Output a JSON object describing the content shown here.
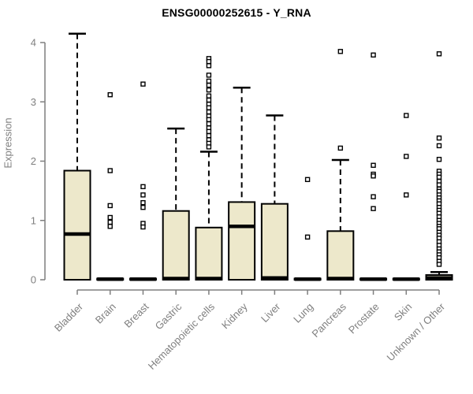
{
  "chart_data": {
    "type": "boxplot",
    "title": "ENSG00000252615 - Y_RNA",
    "ylabel": "Expression",
    "xlabel": "",
    "ylim": [
      0,
      4.2
    ],
    "yticks": [
      0,
      1,
      2,
      3,
      4
    ],
    "grid": false,
    "legend": "none",
    "categories": [
      "Bladder",
      "Brain",
      "Breast",
      "Gastric",
      "Hematopoietic cells",
      "Kidney",
      "Liver",
      "Lung",
      "Pancreas",
      "Prostate",
      "Skin",
      "Unknown / Other"
    ],
    "series": [
      {
        "label": "Bladder",
        "whisker_low": 0,
        "q1": 0,
        "median": 0.77,
        "q3": 1.84,
        "whisker_high": 4.15,
        "outliers": []
      },
      {
        "label": "Brain",
        "whisker_low": 0,
        "q1": 0,
        "median": 0.01,
        "q3": 0.02,
        "whisker_high": 0.02,
        "outliers": [
          3.12,
          1.84,
          1.25,
          1.05,
          0.97,
          0.9
        ]
      },
      {
        "label": "Breast",
        "whisker_low": 0,
        "q1": 0,
        "median": 0.01,
        "q3": 0.02,
        "whisker_high": 0.02,
        "outliers": [
          3.3,
          1.57,
          1.43,
          1.3,
          1.22,
          0.95,
          0.89
        ]
      },
      {
        "label": "Gastric",
        "whisker_low": 0,
        "q1": 0,
        "median": 0.02,
        "q3": 1.16,
        "whisker_high": 2.55,
        "outliers": []
      },
      {
        "label": "Hematopoietic cells",
        "whisker_low": 0,
        "q1": 0,
        "median": 0.02,
        "q3": 0.88,
        "whisker_high": 2.16,
        "outliers": [
          3.73,
          3.68,
          3.61,
          3.45,
          3.35,
          3.28,
          3.2,
          3.1,
          3.03,
          2.96,
          2.9,
          2.83,
          2.76,
          2.7,
          2.63,
          2.56,
          2.5,
          2.43,
          2.36,
          2.3,
          2.24
        ]
      },
      {
        "label": "Kidney",
        "whisker_low": 0,
        "q1": 0,
        "median": 0.9,
        "q3": 1.31,
        "whisker_high": 3.24,
        "outliers": []
      },
      {
        "label": "Liver",
        "whisker_low": 0,
        "q1": 0,
        "median": 0.03,
        "q3": 1.28,
        "whisker_high": 2.77,
        "outliers": []
      },
      {
        "label": "Lung",
        "whisker_low": 0,
        "q1": 0,
        "median": 0.01,
        "q3": 0.02,
        "whisker_high": 0.02,
        "outliers": [
          1.69,
          0.72
        ]
      },
      {
        "label": "Pancreas",
        "whisker_low": 0,
        "q1": 0,
        "median": 0.02,
        "q3": 0.82,
        "whisker_high": 2.02,
        "outliers": [
          3.85,
          2.22
        ]
      },
      {
        "label": "Prostate",
        "whisker_low": 0,
        "q1": 0,
        "median": 0.01,
        "q3": 0.02,
        "whisker_high": 0.02,
        "outliers": [
          3.79,
          1.93,
          1.78,
          1.75,
          1.4,
          1.2
        ]
      },
      {
        "label": "Skin",
        "whisker_low": 0,
        "q1": 0,
        "median": 0.01,
        "q3": 0.02,
        "whisker_high": 0.02,
        "outliers": [
          2.77,
          2.08,
          1.43
        ]
      },
      {
        "label": "Unknown / Other",
        "whisker_low": 0,
        "q1": 0,
        "median": 0.03,
        "q3": 0.08,
        "whisker_high": 0.13,
        "outliers": [
          3.81,
          2.39,
          2.26,
          2.03,
          1.83,
          1.78,
          1.73,
          1.66,
          1.6,
          1.53,
          1.49,
          1.43,
          1.38,
          1.33,
          1.28,
          1.22,
          1.17,
          1.12,
          1.06,
          1.0,
          0.95,
          0.9,
          0.86,
          0.8,
          0.75,
          0.7,
          0.64,
          0.58,
          0.52,
          0.47,
          0.42,
          0.37,
          0.31,
          0.26
        ]
      }
    ]
  },
  "colors": {
    "box_fill": "#EDE8CB",
    "box_stroke": "#000000",
    "median": "#000000",
    "whisker": "#000000",
    "outlier_stroke": "#000000",
    "outlier_fill": "#FFFFFF",
    "axis": "#7F7F7F",
    "tick_label": "#7F7F7F",
    "title": "#000000",
    "background": "#FFFFFF"
  }
}
